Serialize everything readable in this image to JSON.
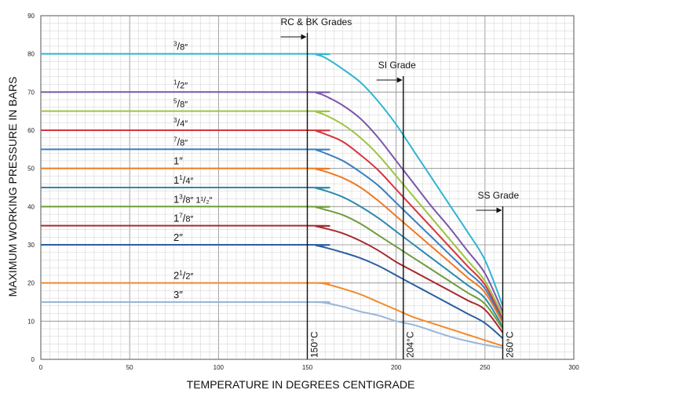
{
  "chart_data": {
    "type": "line",
    "title": "",
    "xlabel": "TEMPERATURE IN DEGREES CENTIGRADE",
    "ylabel": "MAXIMUM WORKING PRESSURE IN BARS",
    "xlim": [
      0,
      300
    ],
    "ylim": [
      0,
      90
    ],
    "x_ticks": [
      "0",
      "50",
      "100",
      "150",
      "200",
      "250",
      "300"
    ],
    "y_ticks": [
      "0",
      "10",
      "20",
      "30",
      "40",
      "50",
      "60",
      "70",
      "80",
      "90"
    ],
    "grid": true,
    "series": [
      {
        "name": "3/8\"",
        "label_main": "",
        "label_num": "3",
        "label_den": "8″",
        "color": "#2fb5d3",
        "x": [
          0,
          150,
          155,
          160,
          170,
          180,
          190,
          200,
          210,
          220,
          230,
          240,
          250,
          260
        ],
        "y": [
          80,
          80,
          79.8,
          79,
          76,
          72.5,
          67.5,
          61.5,
          54.5,
          47.5,
          40.5,
          33.5,
          26,
          14
        ]
      },
      {
        "name": "1/2\"",
        "label_main": "",
        "label_num": "1",
        "label_den": "2″",
        "color": "#7b57a8",
        "x": [
          0,
          150,
          155,
          160,
          170,
          180,
          190,
          200,
          210,
          220,
          230,
          240,
          250,
          260
        ],
        "y": [
          70,
          70,
          69.8,
          69,
          66.5,
          63,
          58,
          52,
          46,
          40,
          34.5,
          28.5,
          22.5,
          12.5
        ]
      },
      {
        "name": "5/8\"",
        "label_main": "",
        "label_num": "5",
        "label_den": "8″",
        "color": "#9cc441",
        "x": [
          0,
          150,
          155,
          160,
          170,
          180,
          190,
          200,
          210,
          220,
          230,
          240,
          250,
          260
        ],
        "y": [
          65,
          65,
          64.8,
          64,
          61.5,
          58,
          53.5,
          48,
          42.5,
          37,
          31.5,
          26,
          20.5,
          11.5
        ]
      },
      {
        "name": "3/4\"",
        "label_main": "",
        "label_num": "3",
        "label_den": "4″",
        "color": "#d6343c",
        "x": [
          0,
          150,
          155,
          160,
          170,
          180,
          190,
          200,
          210,
          220,
          230,
          240,
          250,
          260
        ],
        "y": [
          60,
          60,
          59.8,
          59,
          57,
          53.5,
          49.5,
          44.5,
          39.5,
          34.5,
          29.5,
          24.5,
          19.5,
          10.5
        ]
      },
      {
        "name": "7/8\"",
        "label_main": "",
        "label_num": "7",
        "label_den": "8″",
        "color": "#3a80be",
        "x": [
          0,
          150,
          155,
          160,
          170,
          180,
          190,
          200,
          210,
          220,
          230,
          240,
          250,
          260
        ],
        "y": [
          55,
          55,
          54.8,
          54,
          52,
          49,
          45.5,
          41,
          36.5,
          32,
          27.5,
          23,
          18.5,
          10
        ]
      },
      {
        "name": "1\"",
        "label_main": "1″",
        "label_num": "",
        "label_den": "",
        "color": "#ef7a22",
        "x": [
          0,
          150,
          155,
          160,
          170,
          180,
          190,
          200,
          210,
          220,
          230,
          240,
          250,
          260
        ],
        "y": [
          50,
          50,
          49.8,
          49.2,
          47.5,
          45,
          41.5,
          37.5,
          33.5,
          29.5,
          25.5,
          21.5,
          17.5,
          9.5
        ]
      },
      {
        "name": "1 1/4\"",
        "label_main": "1",
        "label_num": "1",
        "label_den": "4″",
        "color": "#2c8aab",
        "x": [
          0,
          150,
          155,
          160,
          170,
          180,
          190,
          200,
          210,
          220,
          230,
          240,
          250,
          260
        ],
        "y": [
          45,
          45,
          44.8,
          44.2,
          42.5,
          40,
          37,
          33.5,
          30,
          26.5,
          23,
          19.5,
          16,
          8.5
        ]
      },
      {
        "name": "1 3/8\" 1 1/2\"",
        "label_main": "1",
        "label_num": "3",
        "label_den": "8″ 1¹/₂″",
        "color": "#6e9c3a",
        "x": [
          0,
          150,
          155,
          160,
          170,
          180,
          190,
          200,
          210,
          220,
          230,
          240,
          250,
          260
        ],
        "y": [
          40,
          40,
          39.8,
          39.2,
          37.8,
          35.5,
          32.5,
          29.5,
          26.5,
          23.5,
          20.5,
          17.5,
          14.5,
          8
        ]
      },
      {
        "name": "1 7/8\"",
        "label_main": "1",
        "label_num": "7",
        "label_den": "8″",
        "color": "#a82a2f",
        "x": [
          0,
          150,
          155,
          160,
          170,
          180,
          190,
          200,
          210,
          220,
          230,
          240,
          250,
          260
        ],
        "y": [
          35,
          35,
          34.8,
          34.3,
          33,
          31,
          28.5,
          25.5,
          23,
          20.5,
          18,
          15.5,
          13,
          7
        ]
      },
      {
        "name": "2\"",
        "label_main": "2″",
        "label_num": "",
        "label_den": "",
        "color": "#2e5e9e",
        "x": [
          0,
          150,
          155,
          160,
          170,
          180,
          190,
          200,
          210,
          220,
          230,
          240,
          250,
          260
        ],
        "y": [
          30,
          30,
          29.8,
          29.3,
          28,
          26.5,
          24.5,
          22,
          19.5,
          17,
          14.5,
          12,
          9.5,
          5.5
        ]
      },
      {
        "name": "2 1/2\"",
        "label_main": "2",
        "label_num": "1",
        "label_den": "2″",
        "color": "#f2892c",
        "x": [
          0,
          150,
          155,
          160,
          170,
          180,
          190,
          200,
          210,
          220,
          230,
          240,
          250,
          260
        ],
        "y": [
          20,
          20,
          20,
          19.8,
          18.5,
          17,
          15,
          13,
          11,
          9.5,
          8,
          6.5,
          5,
          3.5
        ]
      },
      {
        "name": "3\"",
        "label_main": "3″",
        "label_num": "",
        "label_den": "",
        "color": "#97b6da",
        "x": [
          0,
          150,
          155,
          160,
          170,
          180,
          190,
          200,
          210,
          220,
          230,
          240,
          250,
          260
        ],
        "y": [
          15,
          15,
          15,
          14.8,
          13.8,
          12.5,
          11.5,
          10,
          9,
          7.5,
          6,
          4.8,
          3.8,
          3
        ]
      }
    ],
    "annotations": [
      {
        "text": "RC & BK Grades",
        "x": 150,
        "temp_label": "150°C"
      },
      {
        "text": "SI Grade",
        "x": 204,
        "temp_label": "204°C"
      },
      {
        "text": "SS Grade",
        "x": 260,
        "temp_label": "260°C"
      }
    ]
  }
}
